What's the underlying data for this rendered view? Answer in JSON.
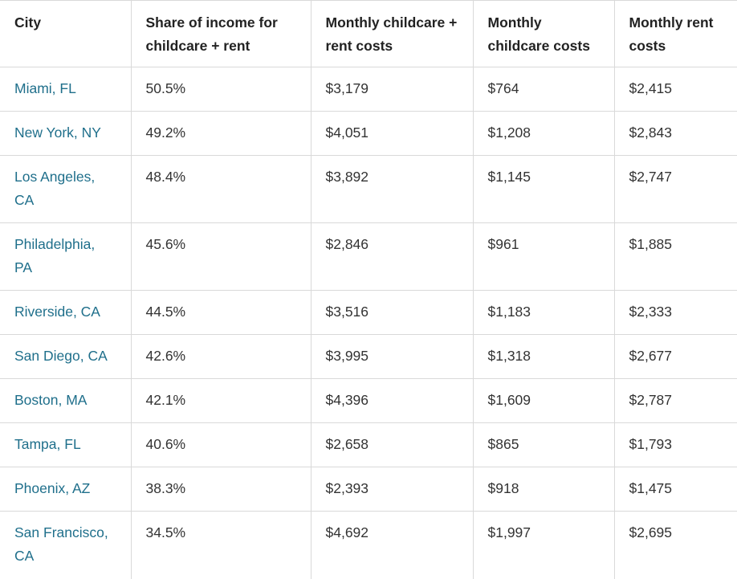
{
  "table": {
    "headers": [
      "City",
      "Share of income for childcare + rent",
      "Monthly childcare + rent costs",
      "Monthly childcare costs",
      "Monthly rent costs"
    ],
    "rows": [
      [
        "Miami, FL",
        "50.5%",
        "$3,179",
        "$764",
        "$2,415"
      ],
      [
        "New York, NY",
        "49.2%",
        "$4,051",
        "$1,208",
        "$2,843"
      ],
      [
        "Los Angeles, CA",
        "48.4%",
        "$3,892",
        "$1,145",
        "$2,747"
      ],
      [
        "Philadelphia, PA",
        "45.6%",
        "$2,846",
        "$961",
        "$1,885"
      ],
      [
        "Riverside, CA",
        "44.5%",
        "$3,516",
        "$1,183",
        "$2,333"
      ],
      [
        "San Diego, CA",
        "42.6%",
        "$3,995",
        "$1,318",
        "$2,677"
      ],
      [
        "Boston, MA",
        "42.1%",
        "$4,396",
        "$1,609",
        "$2,787"
      ],
      [
        "Tampa, FL",
        "40.6%",
        "$2,658",
        "$865",
        "$1,793"
      ],
      [
        "Phoenix, AZ",
        "38.3%",
        "$2,393",
        "$918",
        "$1,475"
      ],
      [
        "San Francisco, CA",
        "34.5%",
        "$4,692",
        "$1,997",
        "$2,695"
      ]
    ]
  },
  "colors": {
    "city_link": "#1f6f8b",
    "text": "#333333",
    "border": "#d9d9d9"
  }
}
